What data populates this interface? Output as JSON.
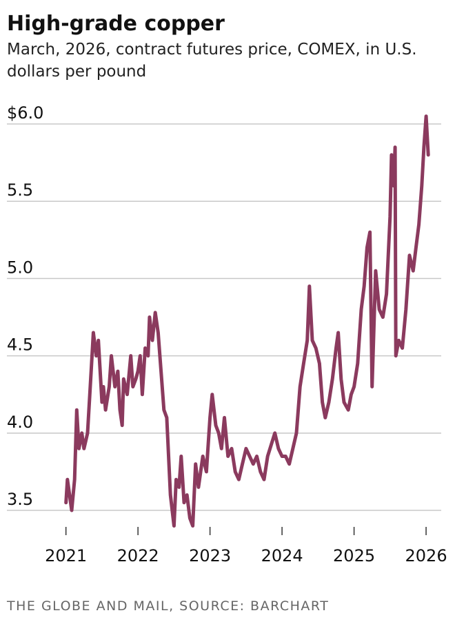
{
  "chart_data": {
    "type": "line",
    "title": "High-grade copper",
    "subtitle": "March, 2026, contract futures price, COMEX, in U.S. dollars per pound",
    "source": "THE GLOBE AND MAIL, SOURCE: BARCHART",
    "x": [
      2021.0,
      2021.02,
      2021.05,
      2021.08,
      2021.12,
      2021.15,
      2021.18,
      2021.22,
      2021.25,
      2021.3,
      2021.35,
      2021.38,
      2021.42,
      2021.45,
      2021.5,
      2021.52,
      2021.55,
      2021.6,
      2021.63,
      2021.68,
      2021.72,
      2021.75,
      2021.78,
      2021.8,
      2021.85,
      2021.9,
      2021.93,
      2021.97,
      2022.0,
      2022.03,
      2022.06,
      2022.1,
      2022.14,
      2022.16,
      2022.2,
      2022.24,
      2022.28,
      2022.32,
      2022.36,
      2022.4,
      2022.45,
      2022.5,
      2022.53,
      2022.57,
      2022.6,
      2022.64,
      2022.68,
      2022.72,
      2022.76,
      2022.8,
      2022.84,
      2022.9,
      2022.95,
      2023.0,
      2023.03,
      2023.08,
      2023.12,
      2023.16,
      2023.2,
      2023.25,
      2023.3,
      2023.35,
      2023.4,
      2023.45,
      2023.5,
      2023.55,
      2023.6,
      2023.65,
      2023.7,
      2023.75,
      2023.8,
      2023.9,
      2023.95,
      2024.0,
      2024.05,
      2024.1,
      2024.15,
      2024.2,
      2024.25,
      2024.3,
      2024.35,
      2024.38,
      2024.42,
      2024.47,
      2024.52,
      2024.56,
      2024.6,
      2024.65,
      2024.7,
      2024.75,
      2024.78,
      2024.82,
      2024.86,
      2024.92,
      2024.96,
      2025.0,
      2025.05,
      2025.1,
      2025.14,
      2025.18,
      2025.22,
      2025.25,
      2025.3,
      2025.35,
      2025.4,
      2025.45,
      2025.5,
      2025.52,
      2025.55,
      2025.57,
      2025.58,
      2025.62,
      2025.67,
      2025.72,
      2025.77,
      2025.82,
      2025.86,
      2025.9,
      2025.94,
      2025.97,
      2026.0,
      2026.03
    ],
    "series": [
      {
        "name": "High-grade copper",
        "color": "#8b3a5e",
        "values": [
          3.55,
          3.7,
          3.6,
          3.5,
          3.7,
          4.15,
          3.9,
          4.0,
          3.9,
          4.0,
          4.4,
          4.65,
          4.5,
          4.6,
          4.2,
          4.3,
          4.15,
          4.3,
          4.5,
          4.3,
          4.4,
          4.15,
          4.05,
          4.35,
          4.25,
          4.5,
          4.3,
          4.35,
          4.4,
          4.5,
          4.25,
          4.55,
          4.5,
          4.75,
          4.6,
          4.78,
          4.65,
          4.4,
          4.15,
          4.1,
          3.6,
          3.4,
          3.7,
          3.65,
          3.85,
          3.55,
          3.6,
          3.45,
          3.4,
          3.8,
          3.65,
          3.85,
          3.75,
          4.1,
          4.25,
          4.05,
          4.0,
          3.9,
          4.1,
          3.85,
          3.9,
          3.75,
          3.7,
          3.8,
          3.9,
          3.85,
          3.8,
          3.85,
          3.75,
          3.7,
          3.85,
          4.0,
          3.9,
          3.85,
          3.85,
          3.8,
          3.9,
          4.0,
          4.3,
          4.45,
          4.6,
          4.95,
          4.6,
          4.55,
          4.45,
          4.2,
          4.1,
          4.2,
          4.35,
          4.55,
          4.65,
          4.35,
          4.2,
          4.15,
          4.25,
          4.3,
          4.45,
          4.8,
          4.95,
          5.2,
          5.3,
          4.3,
          5.05,
          4.8,
          4.75,
          4.9,
          5.4,
          5.8,
          5.6,
          5.85,
          4.5,
          4.6,
          4.55,
          4.8,
          5.15,
          5.05,
          5.2,
          5.35,
          5.6,
          5.85,
          6.05,
          5.8
        ]
      }
    ],
    "xlim": [
      2020.18,
      2026.21
    ],
    "xticks": [
      2021,
      2022,
      2023,
      2024,
      2025,
      2026
    ],
    "ylim": [
      3.42,
      6.09
    ],
    "yticks": [
      {
        "value": 6,
        "label": "$6.0"
      },
      {
        "value": 5.5,
        "label": "5.5"
      },
      {
        "value": 5,
        "label": "5.0"
      },
      4.5,
      {
        "value": 4,
        "label": "4.0"
      },
      3.5
    ],
    "grid": true
  }
}
